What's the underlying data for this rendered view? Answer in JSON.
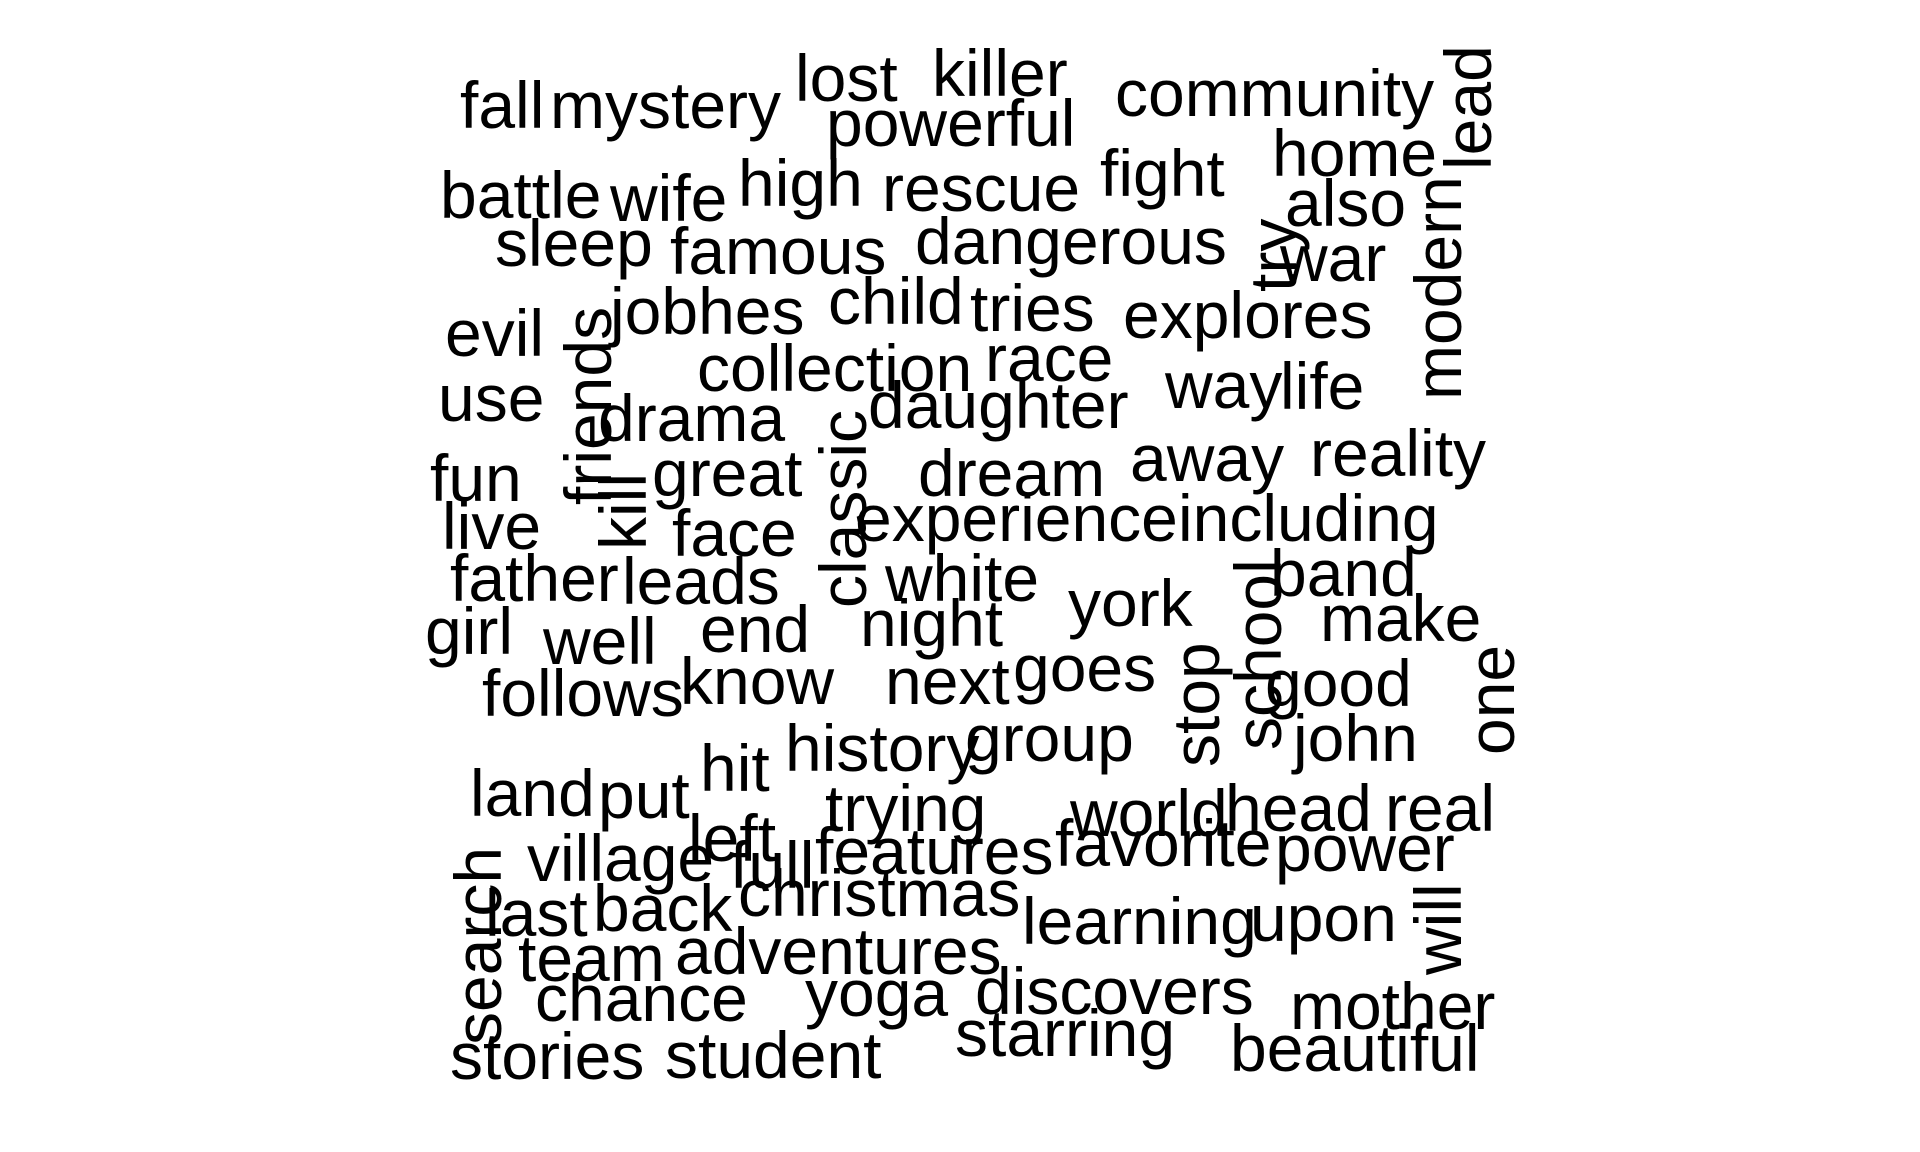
{
  "word_cloud": {
    "text_color": "#000000",
    "background_color": "#ffffff",
    "words": [
      {
        "text": "fall",
        "vertical": false
      },
      {
        "text": "mystery",
        "vertical": false
      },
      {
        "text": "lost",
        "vertical": false
      },
      {
        "text": "killer",
        "vertical": false
      },
      {
        "text": "community",
        "vertical": false
      },
      {
        "text": "lead",
        "vertical": true
      },
      {
        "text": "powerful",
        "vertical": false
      },
      {
        "text": "home",
        "vertical": false
      },
      {
        "text": "battle",
        "vertical": false
      },
      {
        "text": "wife",
        "vertical": false
      },
      {
        "text": "high",
        "vertical": false
      },
      {
        "text": "rescue",
        "vertical": false
      },
      {
        "text": "fight",
        "vertical": false
      },
      {
        "text": "also",
        "vertical": false
      },
      {
        "text": "modern",
        "vertical": true
      },
      {
        "text": "sleep",
        "vertical": false
      },
      {
        "text": "famous",
        "vertical": false
      },
      {
        "text": "dangerous",
        "vertical": false
      },
      {
        "text": "try",
        "vertical": true
      },
      {
        "text": "war",
        "vertical": false
      },
      {
        "text": "evil",
        "vertical": false
      },
      {
        "text": "friends",
        "vertical": true
      },
      {
        "text": "jobhes",
        "vertical": false
      },
      {
        "text": "child",
        "vertical": false
      },
      {
        "text": "tries",
        "vertical": false
      },
      {
        "text": "explores",
        "vertical": false
      },
      {
        "text": "collection",
        "vertical": false
      },
      {
        "text": "race",
        "vertical": false
      },
      {
        "text": "use",
        "vertical": false
      },
      {
        "text": "drama",
        "vertical": false
      },
      {
        "text": "daughter",
        "vertical": false
      },
      {
        "text": "way",
        "vertical": false
      },
      {
        "text": "life",
        "vertical": false
      },
      {
        "text": "classic",
        "vertical": true
      },
      {
        "text": "fun",
        "vertical": false
      },
      {
        "text": "kill",
        "vertical": true
      },
      {
        "text": "great",
        "vertical": false
      },
      {
        "text": "dream",
        "vertical": false
      },
      {
        "text": "away",
        "vertical": false
      },
      {
        "text": "reality",
        "vertical": false
      },
      {
        "text": "live",
        "vertical": false
      },
      {
        "text": "face",
        "vertical": false
      },
      {
        "text": "experience",
        "vertical": false
      },
      {
        "text": "including",
        "vertical": false
      },
      {
        "text": "father",
        "vertical": false
      },
      {
        "text": "leads",
        "vertical": false
      },
      {
        "text": "white",
        "vertical": false
      },
      {
        "text": "school",
        "vertical": true
      },
      {
        "text": "band",
        "vertical": false
      },
      {
        "text": "york",
        "vertical": false
      },
      {
        "text": "girl",
        "vertical": false
      },
      {
        "text": "well",
        "vertical": false
      },
      {
        "text": "end",
        "vertical": false
      },
      {
        "text": "night",
        "vertical": false
      },
      {
        "text": "make",
        "vertical": false
      },
      {
        "text": "goes",
        "vertical": false
      },
      {
        "text": "stop",
        "vertical": true
      },
      {
        "text": "good",
        "vertical": false
      },
      {
        "text": "one",
        "vertical": true
      },
      {
        "text": "follows",
        "vertical": false
      },
      {
        "text": "know",
        "vertical": false
      },
      {
        "text": "next",
        "vertical": false
      },
      {
        "text": "history",
        "vertical": false
      },
      {
        "text": "group",
        "vertical": false
      },
      {
        "text": "john",
        "vertical": false
      },
      {
        "text": "land",
        "vertical": false
      },
      {
        "text": "put",
        "vertical": false
      },
      {
        "text": "hit",
        "vertical": false
      },
      {
        "text": "trying",
        "vertical": false
      },
      {
        "text": "world",
        "vertical": false
      },
      {
        "text": "head",
        "vertical": false
      },
      {
        "text": "real",
        "vertical": false
      },
      {
        "text": "left",
        "vertical": false
      },
      {
        "text": "search",
        "vertical": true
      },
      {
        "text": "village",
        "vertical": false
      },
      {
        "text": "full",
        "vertical": false
      },
      {
        "text": "features",
        "vertical": false
      },
      {
        "text": "favorite",
        "vertical": false
      },
      {
        "text": "power",
        "vertical": false
      },
      {
        "text": "last",
        "vertical": false
      },
      {
        "text": "back",
        "vertical": false
      },
      {
        "text": "christmas",
        "vertical": false
      },
      {
        "text": "learning",
        "vertical": false
      },
      {
        "text": "upon",
        "vertical": false
      },
      {
        "text": "will",
        "vertical": true
      },
      {
        "text": "team",
        "vertical": false
      },
      {
        "text": "adventures",
        "vertical": false
      },
      {
        "text": "chance",
        "vertical": false
      },
      {
        "text": "yoga",
        "vertical": false
      },
      {
        "text": "discovers",
        "vertical": false
      },
      {
        "text": "mother",
        "vertical": false
      },
      {
        "text": "stories",
        "vertical": false
      },
      {
        "text": "student",
        "vertical": false
      },
      {
        "text": "starring",
        "vertical": false
      },
      {
        "text": "beautiful",
        "vertical": false
      }
    ]
  }
}
